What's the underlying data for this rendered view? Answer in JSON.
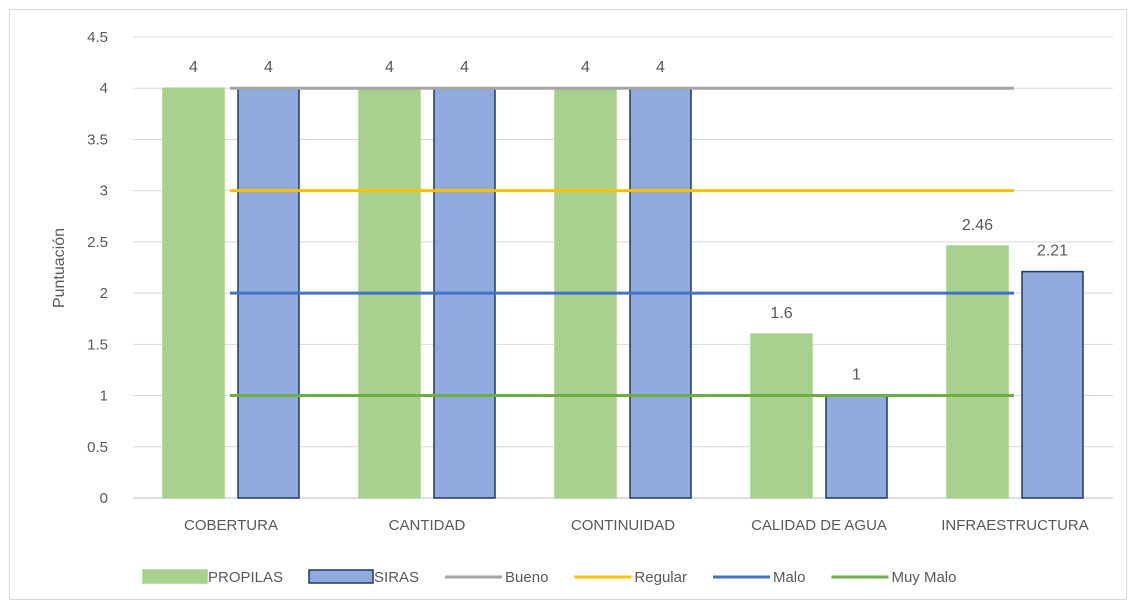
{
  "chart_data": {
    "type": "bar",
    "title": "",
    "xlabel": "",
    "ylabel": "Puntuación",
    "ylim": [
      0,
      4.5
    ],
    "yticks": [
      "0",
      "0.5",
      "1",
      "1.5",
      "2",
      "2.5",
      "3",
      "3.5",
      "4",
      "4.5"
    ],
    "grid": true,
    "legend_position": "bottom",
    "categories": [
      "COBERTURA",
      "CANTIDAD",
      "CONTINUIDAD",
      "CALIDAD DE AGUA",
      "INFRAESTRUCTURA"
    ],
    "series": [
      {
        "name": "PROPILAS",
        "type": "bar",
        "values": [
          4,
          4,
          4,
          1.6,
          2.46
        ],
        "labels": [
          "4",
          "4",
          "4",
          "1.6",
          "2.46"
        ],
        "color": "#a9d18e",
        "border": "#a9d18e"
      },
      {
        "name": "SIRAS",
        "type": "bar",
        "values": [
          4,
          4,
          4,
          1,
          2.21
        ],
        "labels": [
          "4",
          "4",
          "4",
          "1",
          "2.21"
        ],
        "color": "#8faadc",
        "border": "#203864"
      }
    ],
    "reference_lines": [
      {
        "name": "Bueno",
        "value": 4,
        "color": "#a5a5a5"
      },
      {
        "name": "Regular",
        "value": 3,
        "color": "#ffc000"
      },
      {
        "name": "Malo",
        "value": 2,
        "color": "#4472c4"
      },
      {
        "name": "Muy Malo",
        "value": 1,
        "color": "#70ad47"
      }
    ]
  }
}
